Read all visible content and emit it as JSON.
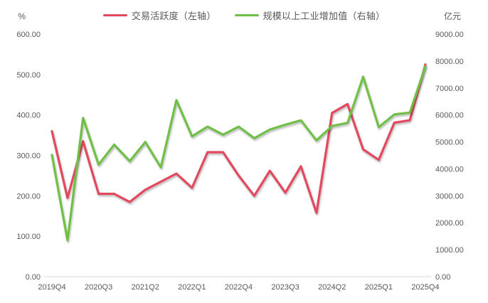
{
  "chart_data": {
    "type": "line",
    "title": "",
    "categories": [
      "2019Q4",
      "2020Q1",
      "2020Q2",
      "2020Q3",
      "2020Q4",
      "2021Q1",
      "2021Q2",
      "2021Q3",
      "2021Q4",
      "2022Q1",
      "2022Q2",
      "2022Q3",
      "2022Q4",
      "2023Q1",
      "2023Q2",
      "2023Q3",
      "2023Q4",
      "2024Q1",
      "2024Q2",
      "2024Q3",
      "2024Q4",
      "2025Q1",
      "2025Q2",
      "2025Q3",
      "2025Q4"
    ],
    "x_tick_interval": 3,
    "x_tick_labels_shown": [
      "2019Q4",
      "2020Q3",
      "2021Q2",
      "2022Q1",
      "2022Q4",
      "2023Q3",
      "2024Q2",
      "2025Q1",
      "2025Q4"
    ],
    "series": [
      {
        "name": "交易活跃度（左轴）",
        "axis": "left",
        "color": "#E2495E",
        "values": [
          360,
          195,
          335,
          205,
          205,
          185,
          215,
          235,
          255,
          220,
          308,
          308,
          250,
          200,
          262,
          208,
          273,
          158,
          405,
          427,
          315,
          289,
          381,
          387,
          525
        ]
      },
      {
        "name": "规模以上工业增加值（右轴）",
        "axis": "right",
        "color": "#70BF46",
        "values": [
          4520,
          1350,
          5890,
          4160,
          4900,
          4290,
          5000,
          4060,
          6550,
          5210,
          5570,
          5270,
          5570,
          5140,
          5460,
          5640,
          5800,
          5060,
          5590,
          5710,
          7420,
          5550,
          6020,
          6090,
          7810
        ]
      }
    ],
    "left_axis": {
      "unit": "%",
      "min": 0,
      "max": 600,
      "step": 100,
      "tick_labels": [
        "0.00",
        "100.00",
        "200.00",
        "300.00",
        "400.00",
        "500.00",
        "600.00"
      ]
    },
    "right_axis": {
      "unit": "亿元",
      "min": 0,
      "max": 9000,
      "step": 1000,
      "tick_labels": [
        "0.00",
        "1000.00",
        "2000.00",
        "3000.00",
        "4000.00",
        "5000.00",
        "6000.00",
        "7000.00",
        "8000.00",
        "9000.00"
      ]
    },
    "grid": false,
    "legend_position": "top"
  }
}
